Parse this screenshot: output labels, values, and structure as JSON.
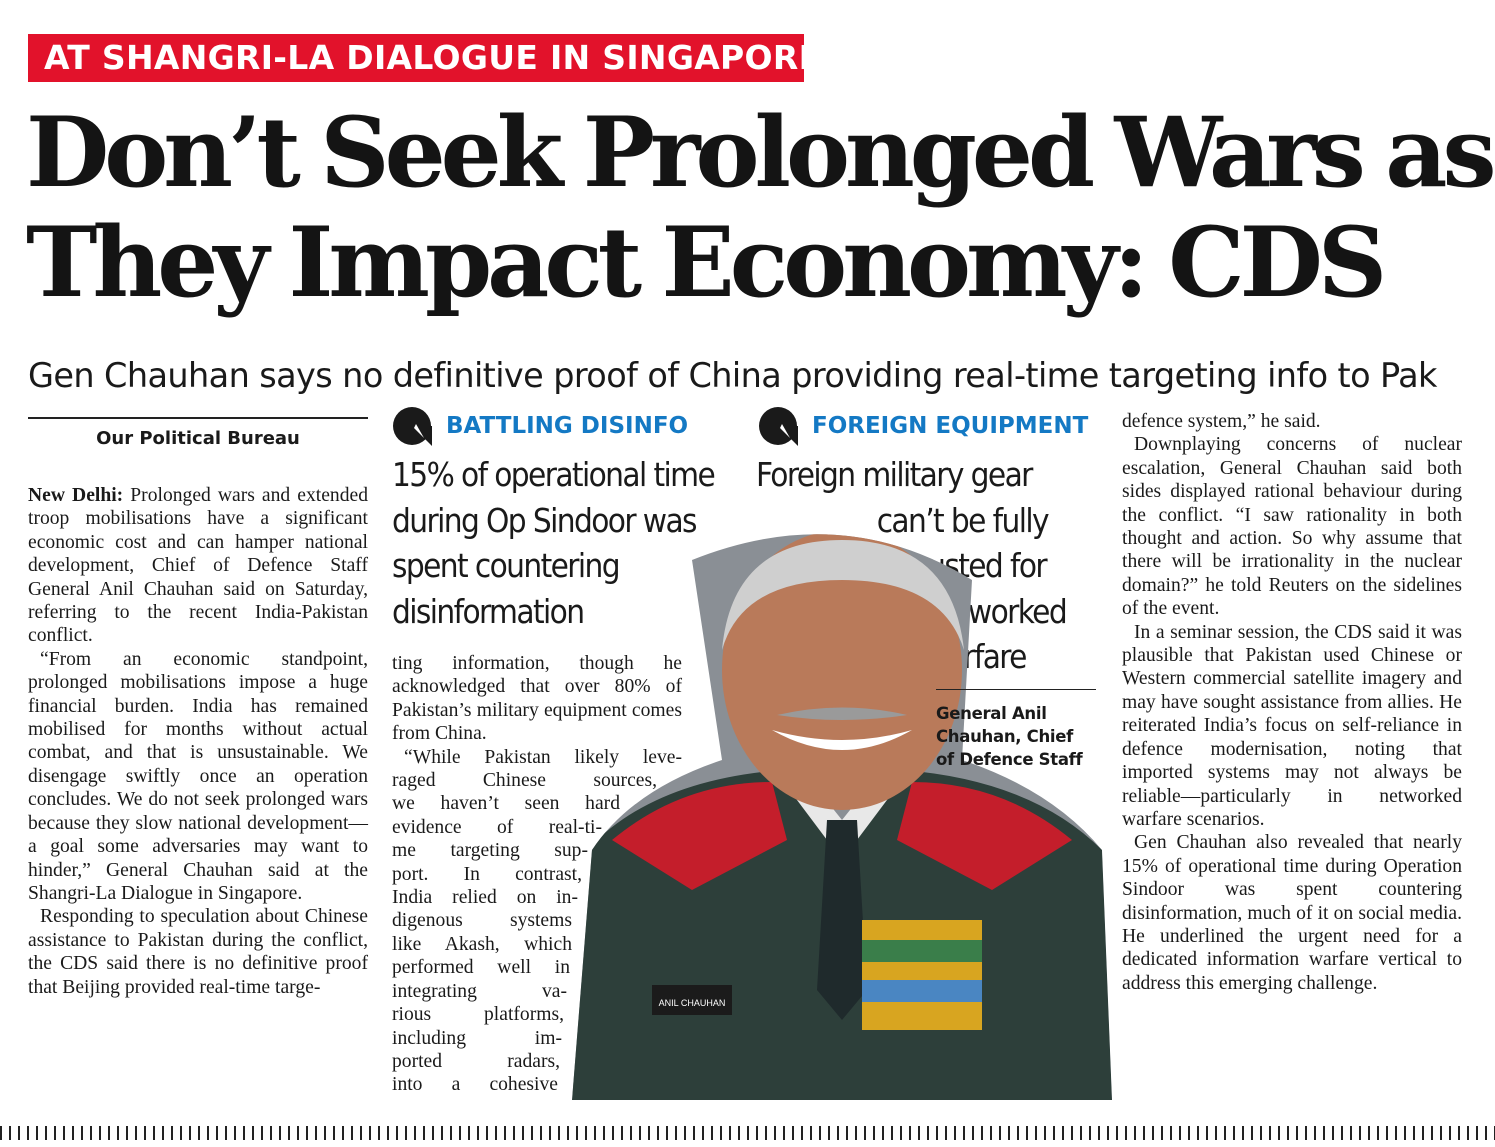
{
  "kicker": "AT SHANGRI-LA DIALOGUE IN SINGAPORE",
  "headline": {
    "line1": "Don’t Seek Prolonged Wars as",
    "line2": "They Impact Economy: CDS"
  },
  "subheadline": "Gen Chauhan says no definitive proof of China providing real-time targeting info to Pak",
  "byline": "Our Political Bureau",
  "column1": {
    "dateline": "New Delhi:",
    "p1": "Prolonged wars and extended troop mobilisations have a significant economic cost and can hamper national development, Chief of Defence Staff General Anil Chauhan said on Saturday, referring to the recent India-Pakistan conflict.",
    "p2": "“From an economic standpoint, prolonged mobilisations impose a huge financial burden. India has remained mobilised for months without actual combat, and that is unsustainable. We disengage swiftly once an operation concludes. We do not seek prolonged wars because they slow national development—a goal some adversaries may want to hinder,” General Chauhan said at the Shangri-La Dialogue in Singapore.",
    "p3": "Responding to speculation about Chinese assistance to Pakistan during the conflict, the CDS said there is no definitive proof that Beijing provided real-time targe-"
  },
  "box1": {
    "label": "BATTLING DISINFO",
    "icon": "quote-bubble-icon",
    "pull": [
      "15% of operational time",
      "during Op Sindoor was",
      "spent countering",
      "disinformation"
    ]
  },
  "box2": {
    "label": "FOREIGN EQUIPMENT",
    "icon": "quote-bubble-icon",
    "pull": [
      "Foreign military gear",
      "can’t be fully",
      "trusted for",
      "networked",
      "warfare"
    ]
  },
  "column2": {
    "p1": "ting information, though he acknowledged that over 80% of Pakistan’s military equipment comes from China.",
    "p2_lines": [
      "“While Pakistan likely leve-",
      "raged Chinese sources,",
      "we haven’t seen hard",
      "evidence of real-ti-",
      "me targeting sup-",
      "port. In contrast,",
      "India relied on in-",
      "digenous systems",
      "like Akash, which",
      "performed well in",
      "integrating va-",
      "rious platforms,",
      "including im-",
      "ported radars,",
      "into a cohesive"
    ]
  },
  "caption": "General Anil Chauhan, Chief of Defence Staff",
  "photo": {
    "alt": "portrait-photo",
    "nametag": "ANIL CHAUHAN",
    "colors": {
      "uniform": "#2d3f3a",
      "collar": "#c41e2b",
      "skin": "#b97a5a",
      "hair": "#cfcfcf",
      "background": "#8a8f95"
    }
  },
  "column3": {
    "p0": "defence system,” he said.",
    "p1": "Downplaying concerns of nuclear escalation, General Chauhan said both sides displayed rational behaviour during the conflict. “I saw rationality in both thought and action. So why assume that there will be irrationality in the nuclear domain?” he told Reuters on the sidelines of the event.",
    "p2": "In a seminar session, the CDS said it was plausible that Pakistan used Chinese or Western commercial satellite imagery and may have sought assistance from allies. He reiterated India’s focus on self-reliance in defence modernisation, noting that imported systems may not always be reliable—particularly in networked warfare scenarios.",
    "p3": "Gen Chauhan also revealed that nearly 15% of operational time during Operation Sindoor was spent countering disinformation, much of it on social media. He underlined the urgent need for a dedicated information warfare vertical to address this emerging challenge."
  }
}
